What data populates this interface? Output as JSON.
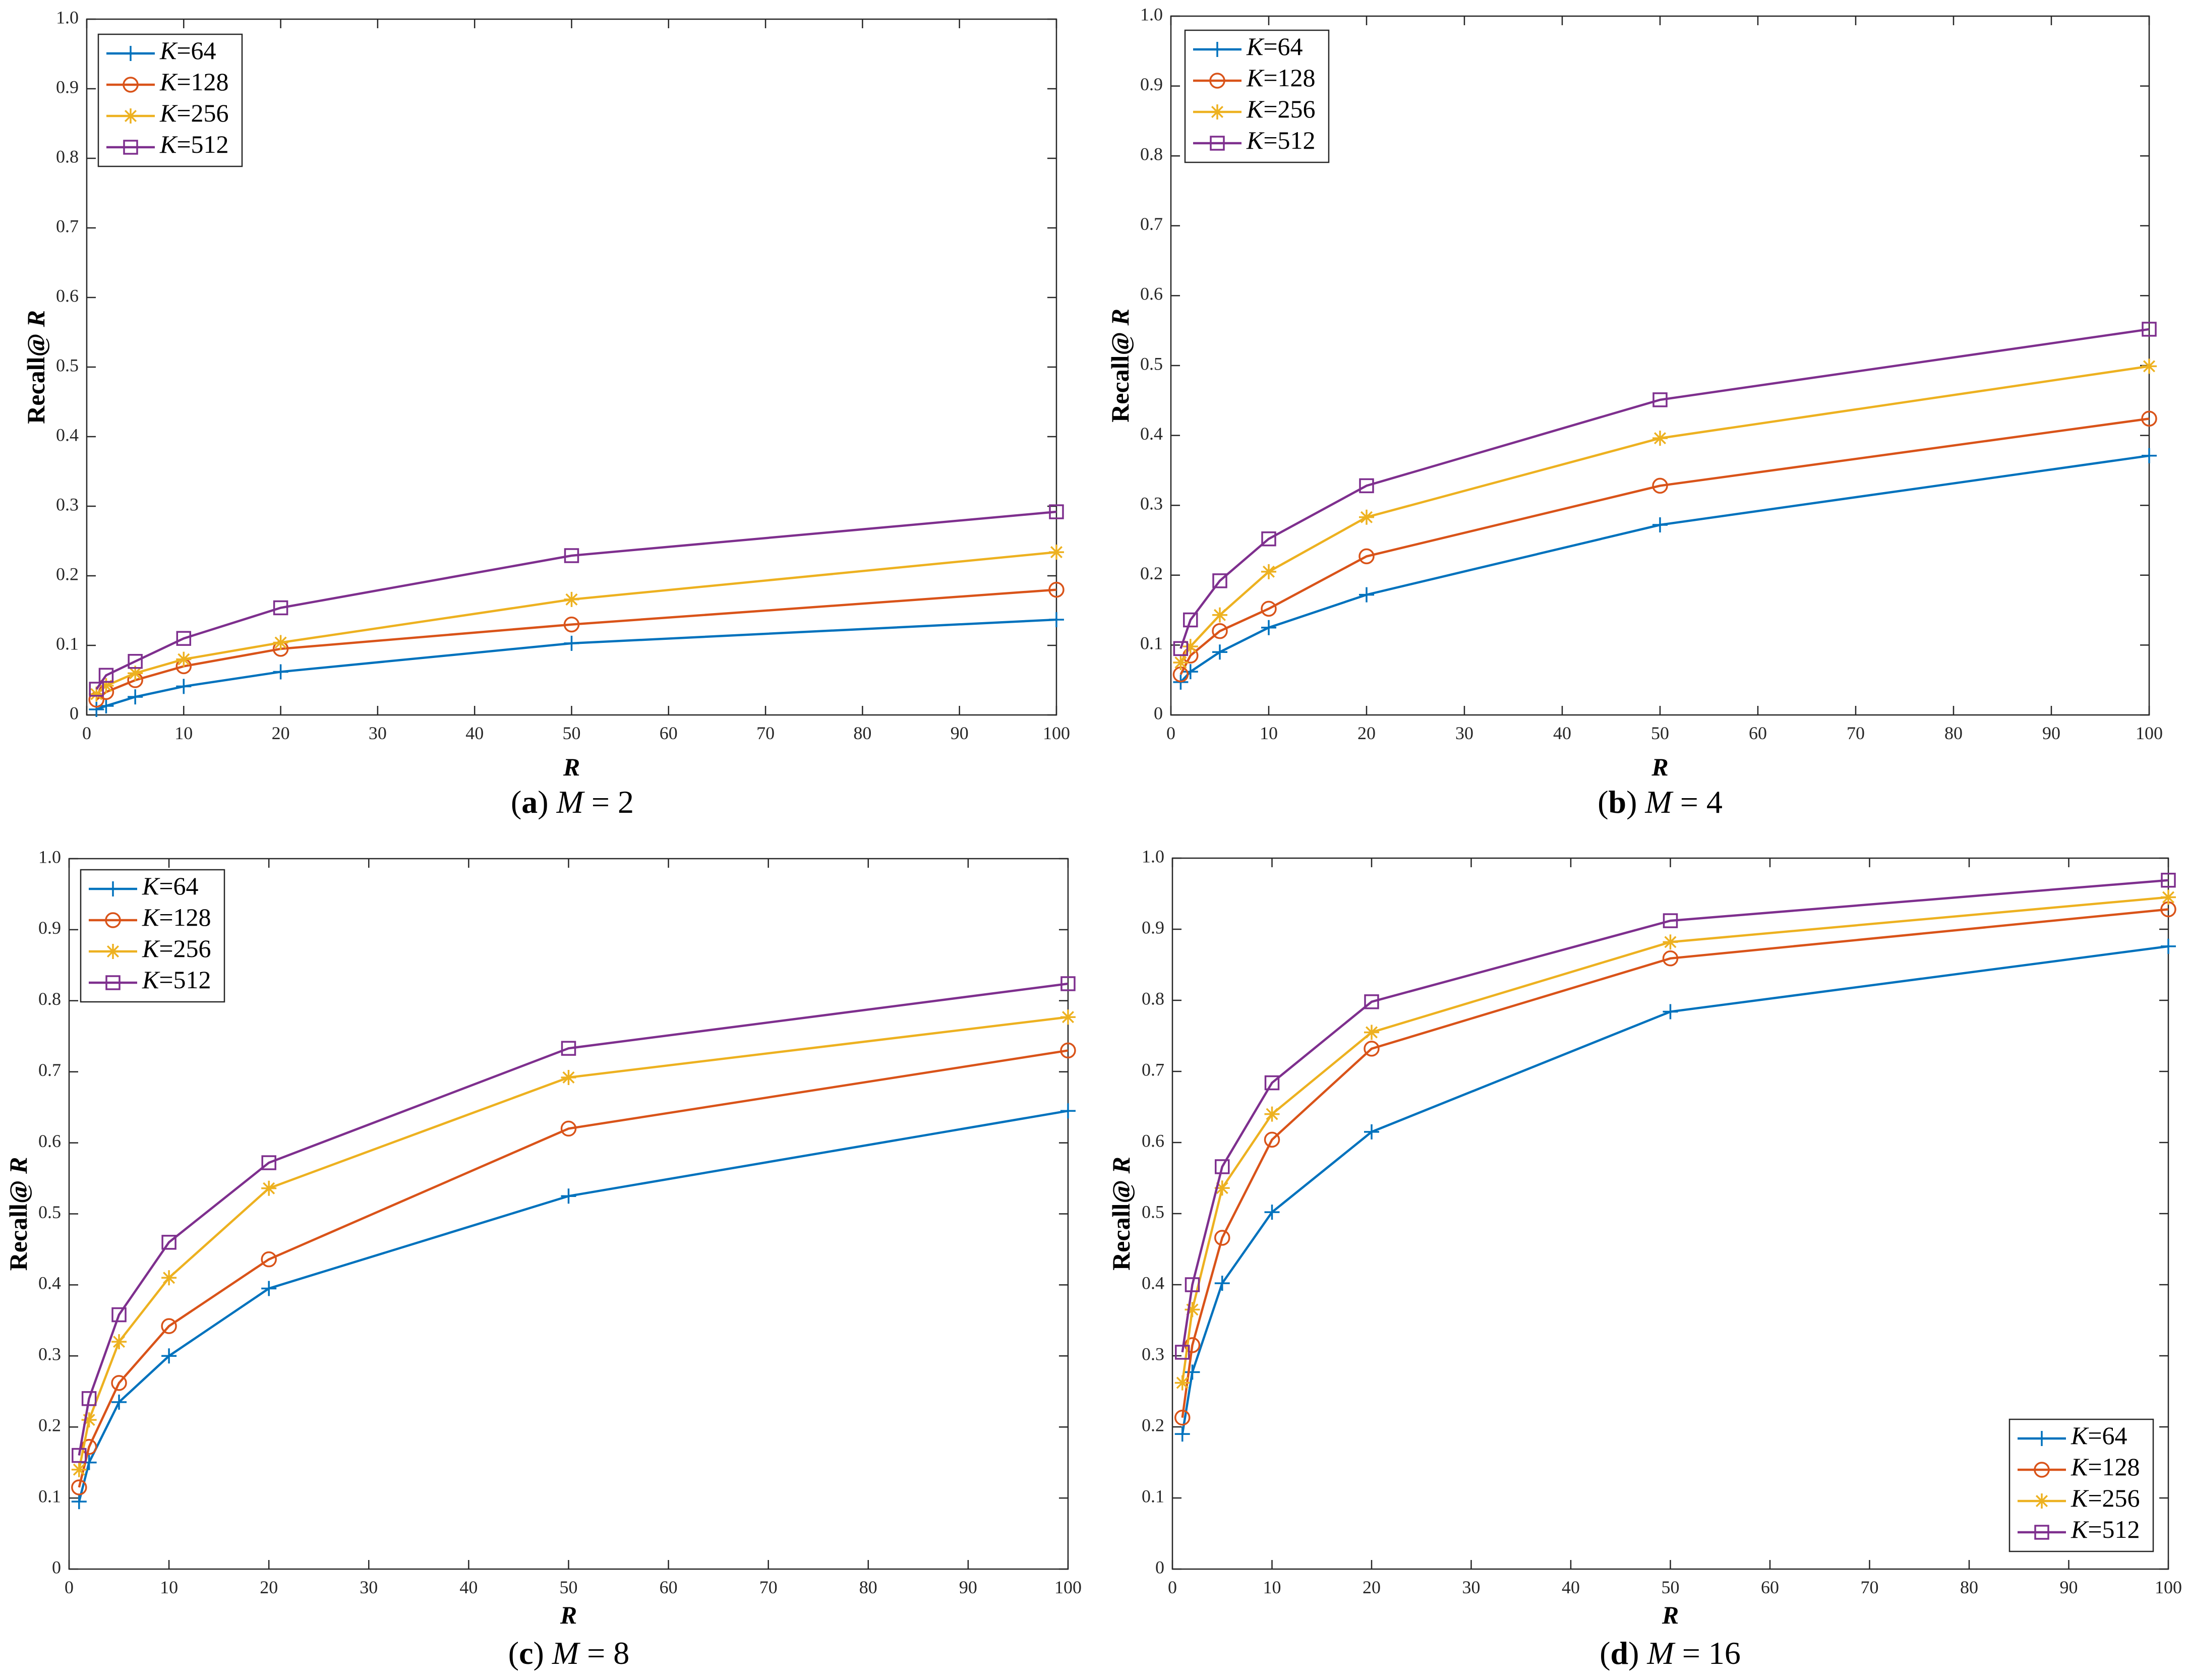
{
  "figure": {
    "shared_axes": {
      "xlabel": "R",
      "ylabel": "Recall@ R",
      "xlim": [
        0,
        100
      ],
      "ylim": [
        0,
        1.0
      ],
      "xticks": [
        "0",
        "10",
        "20",
        "30",
        "40",
        "50",
        "60",
        "70",
        "80",
        "90",
        "100"
      ],
      "yticks": [
        "0",
        "0.1",
        "0.2",
        "0.3",
        "0.4",
        "0.5",
        "0.6",
        "0.7",
        "0.8",
        "0.9",
        "1.0"
      ]
    },
    "legend_labels": [
      "K=64",
      "K=128",
      "K=256",
      "K=512"
    ]
  },
  "chart_data": [
    {
      "type": "line",
      "caption": {
        "letter": "a",
        "text": "M = 2"
      },
      "xlabel": "R",
      "ylabel": "Recall@ R",
      "xlim": [
        0,
        100
      ],
      "ylim": [
        0,
        1
      ],
      "grid": false,
      "legend_position": "top-left",
      "x": [
        1,
        2,
        5,
        10,
        20,
        50,
        100
      ],
      "series": [
        {
          "name": "K=64",
          "color": "#0072BD",
          "marker": "plus",
          "values": [
            0.008,
            0.013,
            0.026,
            0.041,
            0.062,
            0.103,
            0.137
          ]
        },
        {
          "name": "K=128",
          "color": "#D95319",
          "marker": "circle",
          "values": [
            0.022,
            0.033,
            0.05,
            0.07,
            0.095,
            0.13,
            0.18
          ]
        },
        {
          "name": "K=256",
          "color": "#EDB120",
          "marker": "asterisk",
          "values": [
            0.03,
            0.042,
            0.06,
            0.08,
            0.104,
            0.166,
            0.234
          ]
        },
        {
          "name": "K=512",
          "color": "#7E2F8E",
          "marker": "square",
          "values": [
            0.037,
            0.057,
            0.077,
            0.11,
            0.154,
            0.229,
            0.292
          ]
        }
      ]
    },
    {
      "type": "line",
      "caption": {
        "letter": "b",
        "text": "M = 4"
      },
      "xlabel": "R",
      "ylabel": "Recall@ R",
      "xlim": [
        0,
        100
      ],
      "ylim": [
        0,
        1
      ],
      "grid": false,
      "legend_position": "top-left",
      "x": [
        1,
        2,
        5,
        10,
        20,
        50,
        100
      ],
      "series": [
        {
          "name": "K=64",
          "color": "#0072BD",
          "marker": "plus",
          "values": [
            0.047,
            0.062,
            0.09,
            0.125,
            0.172,
            0.272,
            0.371
          ]
        },
        {
          "name": "K=128",
          "color": "#D95319",
          "marker": "circle",
          "values": [
            0.058,
            0.085,
            0.12,
            0.152,
            0.227,
            0.328,
            0.424
          ]
        },
        {
          "name": "K=256",
          "color": "#EDB120",
          "marker": "asterisk",
          "values": [
            0.075,
            0.098,
            0.143,
            0.205,
            0.283,
            0.396,
            0.499
          ]
        },
        {
          "name": "K=512",
          "color": "#7E2F8E",
          "marker": "square",
          "values": [
            0.095,
            0.136,
            0.192,
            0.252,
            0.328,
            0.451,
            0.552
          ]
        }
      ]
    },
    {
      "type": "line",
      "caption": {
        "letter": "c",
        "text": "M = 8"
      },
      "xlabel": "R",
      "ylabel": "Recall@ R",
      "xlim": [
        0,
        100
      ],
      "ylim": [
        0,
        1
      ],
      "grid": false,
      "legend_position": "top-left",
      "x": [
        1,
        2,
        5,
        10,
        20,
        50,
        100
      ],
      "series": [
        {
          "name": "K=64",
          "color": "#0072BD",
          "marker": "plus",
          "values": [
            0.095,
            0.15,
            0.235,
            0.3,
            0.395,
            0.525,
            0.645
          ]
        },
        {
          "name": "K=128",
          "color": "#D95319",
          "marker": "circle",
          "values": [
            0.115,
            0.172,
            0.262,
            0.342,
            0.436,
            0.62,
            0.73
          ]
        },
        {
          "name": "K=256",
          "color": "#EDB120",
          "marker": "asterisk",
          "values": [
            0.14,
            0.21,
            0.32,
            0.41,
            0.536,
            0.692,
            0.777
          ]
        },
        {
          "name": "K=512",
          "color": "#7E2F8E",
          "marker": "square",
          "values": [
            0.16,
            0.24,
            0.358,
            0.46,
            0.572,
            0.733,
            0.824
          ]
        }
      ]
    },
    {
      "type": "line",
      "caption": {
        "letter": "d",
        "text": "M = 16"
      },
      "xlabel": "R",
      "ylabel": "Recall@ R",
      "xlim": [
        0,
        100
      ],
      "ylim": [
        0,
        1
      ],
      "grid": false,
      "legend_position": "bottom-right",
      "x": [
        1,
        2,
        5,
        10,
        20,
        50,
        100
      ],
      "series": [
        {
          "name": "K=64",
          "color": "#0072BD",
          "marker": "plus",
          "values": [
            0.19,
            0.277,
            0.402,
            0.502,
            0.615,
            0.784,
            0.876
          ]
        },
        {
          "name": "K=128",
          "color": "#D95319",
          "marker": "circle",
          "values": [
            0.213,
            0.315,
            0.466,
            0.604,
            0.732,
            0.859,
            0.928
          ]
        },
        {
          "name": "K=256",
          "color": "#EDB120",
          "marker": "asterisk",
          "values": [
            0.262,
            0.365,
            0.536,
            0.64,
            0.755,
            0.882,
            0.945
          ]
        },
        {
          "name": "K=512",
          "color": "#7E2F8E",
          "marker": "square",
          "values": [
            0.305,
            0.4,
            0.566,
            0.684,
            0.798,
            0.912,
            0.969
          ]
        }
      ]
    }
  ]
}
